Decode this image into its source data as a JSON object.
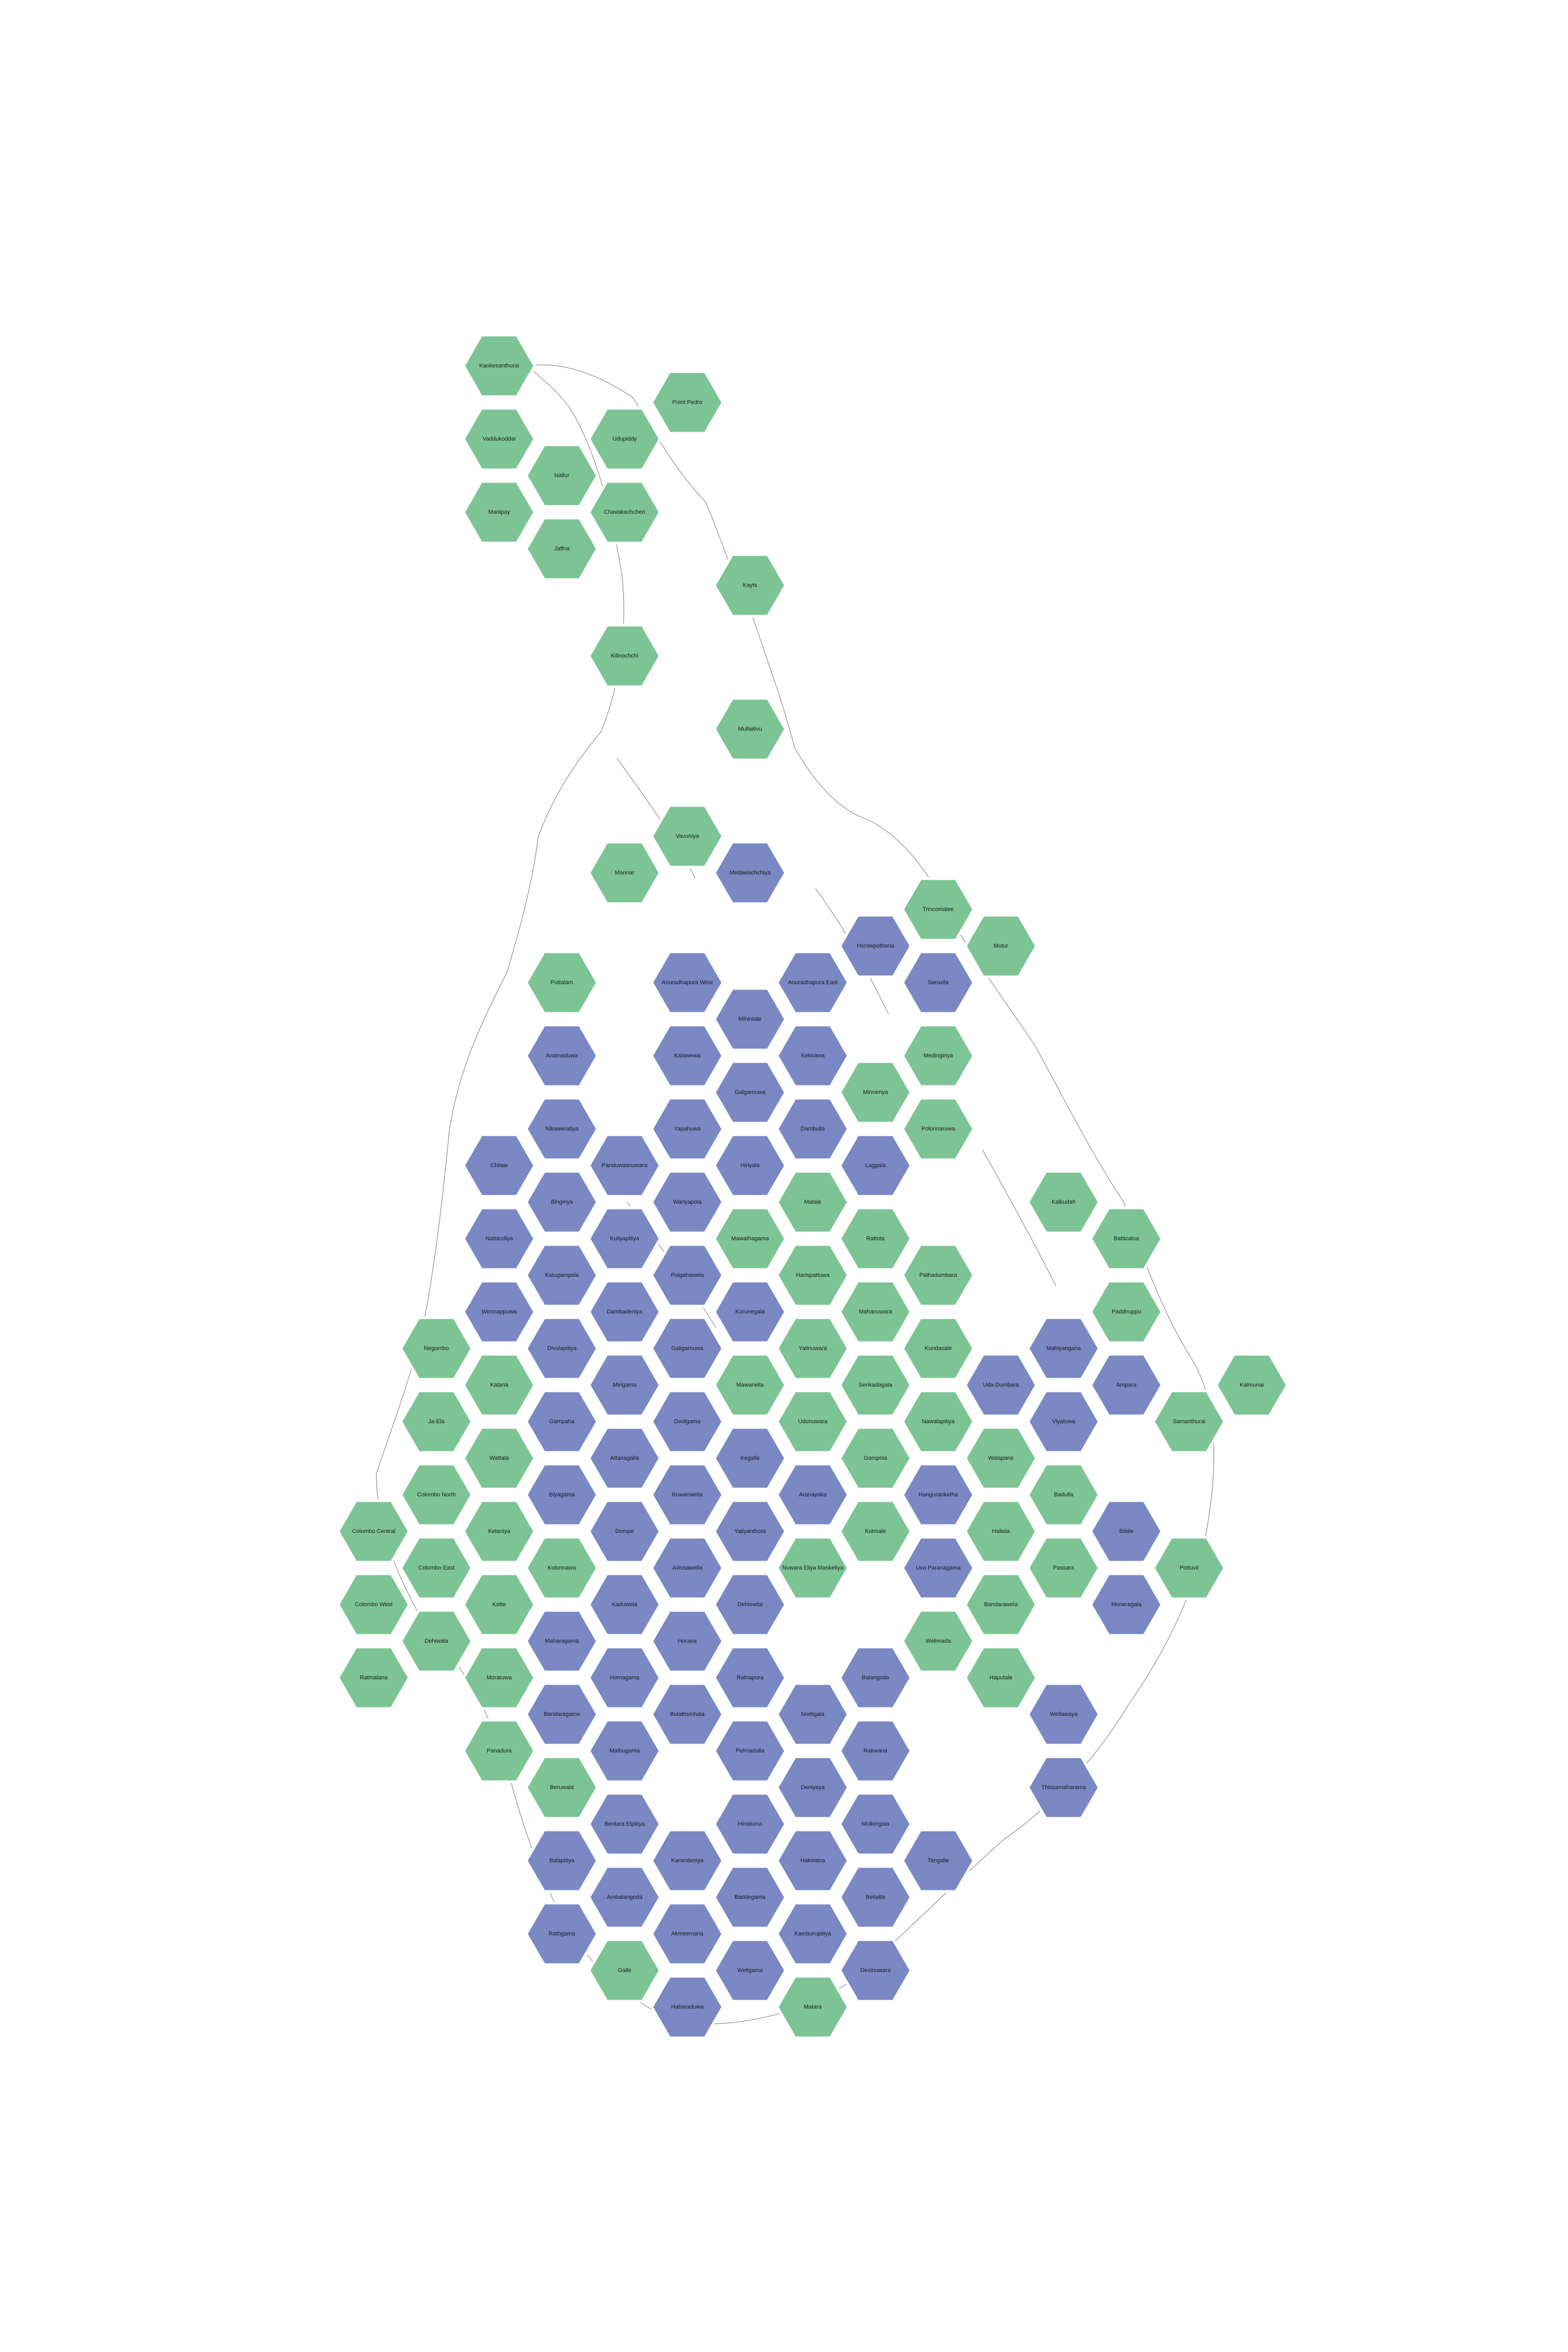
{
  "colors": {
    "green": "#7dc495",
    "blue": "#7a88c4",
    "background": "#ffffff"
  },
  "electorates": [
    {
      "name": "Kankesanthurai",
      "party": "green"
    },
    {
      "name": "Point Pedro",
      "party": "green"
    },
    {
      "name": "Vaddukoddai",
      "party": "green"
    },
    {
      "name": "Udupiddy",
      "party": "green"
    },
    {
      "name": "Nallur",
      "party": "green"
    },
    {
      "name": "Manipay",
      "party": "green"
    },
    {
      "name": "Chavakachcheri",
      "party": "green"
    },
    {
      "name": "Jaffna",
      "party": "green"
    },
    {
      "name": "Kayts",
      "party": "green"
    },
    {
      "name": "Kilinochchi",
      "party": "green"
    },
    {
      "name": "Mullaitivu",
      "party": "green"
    },
    {
      "name": "Vavuniya",
      "party": "green"
    },
    {
      "name": "Mannar",
      "party": "green"
    },
    {
      "name": "Medawachchiya",
      "party": "blue"
    },
    {
      "name": "Trincomalee",
      "party": "green"
    },
    {
      "name": "Horowpothana",
      "party": "blue"
    },
    {
      "name": "Mutur",
      "party": "green"
    },
    {
      "name": "Puttalam",
      "party": "green"
    },
    {
      "name": "Anuradhapura West",
      "party": "blue"
    },
    {
      "name": "Anuradhapura East",
      "party": "blue"
    },
    {
      "name": "Seruvila",
      "party": "blue"
    },
    {
      "name": "Mihintale",
      "party": "blue"
    },
    {
      "name": "Anamaduwa",
      "party": "blue"
    },
    {
      "name": "Kalawewa",
      "party": "blue"
    },
    {
      "name": "Kekirawa",
      "party": "blue"
    },
    {
      "name": "Medirigiriya",
      "party": "green"
    },
    {
      "name": "Galgamuwa",
      "party": "blue"
    },
    {
      "name": "Minneriya",
      "party": "green"
    },
    {
      "name": "Nikaweratiya",
      "party": "blue"
    },
    {
      "name": "Yapahuwa",
      "party": "blue"
    },
    {
      "name": "Dambulla",
      "party": "blue"
    },
    {
      "name": "Polonnaruwa",
      "party": "green"
    },
    {
      "name": "Chilaw",
      "party": "blue"
    },
    {
      "name": "Panduwasnuwara",
      "party": "blue"
    },
    {
      "name": "Hiriyala",
      "party": "blue"
    },
    {
      "name": "Laggala",
      "party": "blue"
    },
    {
      "name": "Bingiriya",
      "party": "blue"
    },
    {
      "name": "Wariyapola",
      "party": "blue"
    },
    {
      "name": "Matale",
      "party": "green"
    },
    {
      "name": "Kalkudah",
      "party": "green"
    },
    {
      "name": "Nattandiya",
      "party": "blue"
    },
    {
      "name": "Kuliyapitiya",
      "party": "blue"
    },
    {
      "name": "Mawathagama",
      "party": "green"
    },
    {
      "name": "Rattota",
      "party": "green"
    },
    {
      "name": "Batticaloa",
      "party": "green"
    },
    {
      "name": "Katugampola",
      "party": "blue"
    },
    {
      "name": "Polgahawela",
      "party": "blue"
    },
    {
      "name": "Harispattuwa",
      "party": "green"
    },
    {
      "name": "Pathadumbara",
      "party": "green"
    },
    {
      "name": "Wennappuwa",
      "party": "blue"
    },
    {
      "name": "Dambadeniya",
      "party": "blue"
    },
    {
      "name": "Kurunegala",
      "party": "blue"
    },
    {
      "name": "Mahanuwara",
      "party": "green"
    },
    {
      "name": "Paddiruppu",
      "party": "green"
    },
    {
      "name": "Negombo",
      "party": "green"
    },
    {
      "name": "Divulapitiya",
      "party": "blue"
    },
    {
      "name": "Galigamuwa",
      "party": "blue"
    },
    {
      "name": "Yatinuwara",
      "party": "green"
    },
    {
      "name": "Kundasale",
      "party": "green"
    },
    {
      "name": "Mahiyangana",
      "party": "blue"
    },
    {
      "name": "Katana",
      "party": "green"
    },
    {
      "name": "Mirigama",
      "party": "blue"
    },
    {
      "name": "Mawanella",
      "party": "green"
    },
    {
      "name": "Senkadagala",
      "party": "green"
    },
    {
      "name": "Uda Dumbara",
      "party": "blue"
    },
    {
      "name": "Ampara",
      "party": "blue"
    },
    {
      "name": "Kalmunai",
      "party": "green"
    },
    {
      "name": "Ja-Ela",
      "party": "green"
    },
    {
      "name": "Gampaha",
      "party": "blue"
    },
    {
      "name": "Dedigama",
      "party": "blue"
    },
    {
      "name": "Udunuwara",
      "party": "green"
    },
    {
      "name": "Nawalapitiya",
      "party": "green"
    },
    {
      "name": "Viyaluwa",
      "party": "blue"
    },
    {
      "name": "Samanthurai",
      "party": "green"
    },
    {
      "name": "Wattala",
      "party": "green"
    },
    {
      "name": "Attanagalla",
      "party": "blue"
    },
    {
      "name": "Kegalle",
      "party": "blue"
    },
    {
      "name": "Gampola",
      "party": "green"
    },
    {
      "name": "Walapane",
      "party": "green"
    },
    {
      "name": "Colombo North",
      "party": "green"
    },
    {
      "name": "Biyagama",
      "party": "blue"
    },
    {
      "name": "Ruwanwella",
      "party": "blue"
    },
    {
      "name": "Aranayaka",
      "party": "blue"
    },
    {
      "name": "Hanguranketha",
      "party": "blue"
    },
    {
      "name": "Badulla",
      "party": "green"
    },
    {
      "name": "Colombo Central",
      "party": "green"
    },
    {
      "name": "Kelaniya",
      "party": "green"
    },
    {
      "name": "Dompe",
      "party": "blue"
    },
    {
      "name": "Yatiyanthota",
      "party": "blue"
    },
    {
      "name": "Kotmale",
      "party": "green"
    },
    {
      "name": "Haliela",
      "party": "green"
    },
    {
      "name": "Bibile",
      "party": "blue"
    },
    {
      "name": "Colombo East",
      "party": "green"
    },
    {
      "name": "Kolonnawa",
      "party": "green"
    },
    {
      "name": "Avissawella",
      "party": "blue"
    },
    {
      "name": "Nuwara Eliya Maskeliya",
      "party": "green"
    },
    {
      "name": "Uva Paranagama",
      "party": "blue"
    },
    {
      "name": "Passara",
      "party": "green"
    },
    {
      "name": "Pottuvil",
      "party": "green"
    },
    {
      "name": "Colombo West",
      "party": "green"
    },
    {
      "name": "Kotte",
      "party": "green"
    },
    {
      "name": "Kaduwela",
      "party": "blue"
    },
    {
      "name": "Dehiowita",
      "party": "blue"
    },
    {
      "name": "Bandarawela",
      "party": "green"
    },
    {
      "name": "Moneragala",
      "party": "blue"
    },
    {
      "name": "Dehiwala",
      "party": "green"
    },
    {
      "name": "Maharagama",
      "party": "blue"
    },
    {
      "name": "Horana",
      "party": "blue"
    },
    {
      "name": "Welimada",
      "party": "green"
    },
    {
      "name": "Ratmalana",
      "party": "green"
    },
    {
      "name": "Moratuwa",
      "party": "green"
    },
    {
      "name": "Homagama",
      "party": "blue"
    },
    {
      "name": "Ratnapura",
      "party": "blue"
    },
    {
      "name": "Balangoda",
      "party": "blue"
    },
    {
      "name": "Haputale",
      "party": "green"
    },
    {
      "name": "Wellawaya",
      "party": "blue"
    },
    {
      "name": "Panadura",
      "party": "green"
    },
    {
      "name": "Bandaragama",
      "party": "blue"
    },
    {
      "name": "Bulathsinhala",
      "party": "blue"
    },
    {
      "name": "Nivitigala",
      "party": "blue"
    },
    {
      "name": "Mathugama",
      "party": "blue"
    },
    {
      "name": "Pelmadulla",
      "party": "blue"
    },
    {
      "name": "Rakwana",
      "party": "blue"
    },
    {
      "name": "Beruwala",
      "party": "green"
    },
    {
      "name": "Deniyaya",
      "party": "blue"
    },
    {
      "name": "Thissamaharama",
      "party": "blue"
    },
    {
      "name": "Bentara Elpitiya",
      "party": "blue"
    },
    {
      "name": "Hiniduma",
      "party": "blue"
    },
    {
      "name": "Mulkirigala",
      "party": "blue"
    },
    {
      "name": "Balapitiya",
      "party": "blue"
    },
    {
      "name": "Karandeniya",
      "party": "blue"
    },
    {
      "name": "Hakmana",
      "party": "blue"
    },
    {
      "name": "Tangalle",
      "party": "blue"
    },
    {
      "name": "Ambalangoda",
      "party": "blue"
    },
    {
      "name": "Baddegama",
      "party": "blue"
    },
    {
      "name": "Beliatta",
      "party": "blue"
    },
    {
      "name": "Rathgama",
      "party": "blue"
    },
    {
      "name": "Akmeemana",
      "party": "blue"
    },
    {
      "name": "Kamburupitiya",
      "party": "blue"
    },
    {
      "name": "Galle",
      "party": "green"
    },
    {
      "name": "Weligama",
      "party": "blue"
    },
    {
      "name": "Devinuwara",
      "party": "blue"
    },
    {
      "name": "Habaraduwa",
      "party": "blue"
    },
    {
      "name": "Matara",
      "party": "green"
    }
  ]
}
